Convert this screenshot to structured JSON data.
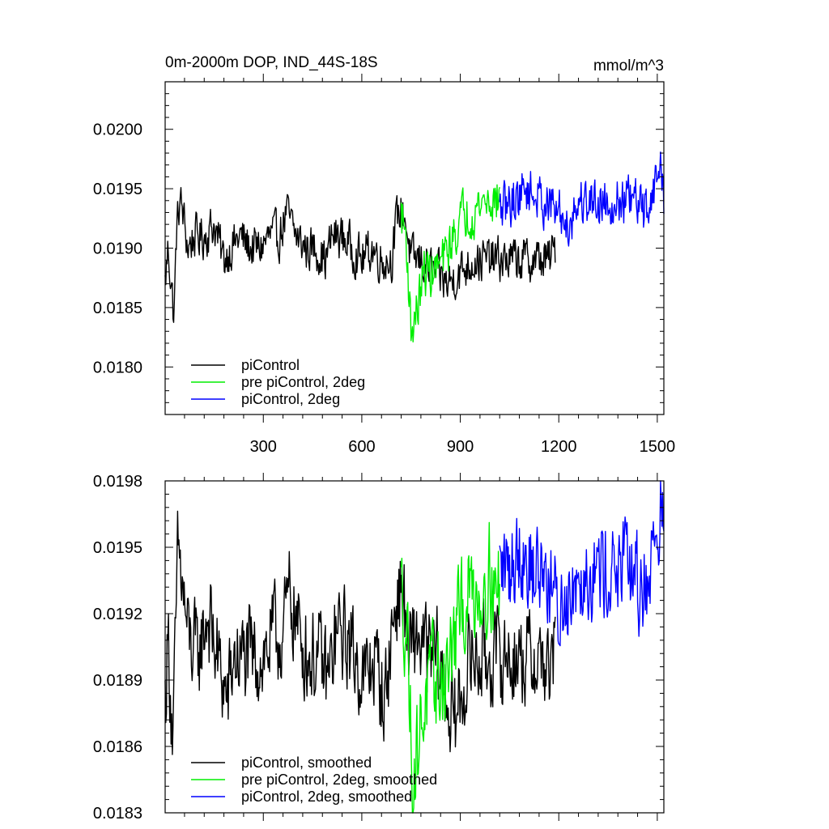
{
  "chart_data": [
    {
      "type": "line",
      "title": "0m-2000m DOP, IND_44S-18S",
      "units": "mmol/m^3",
      "xlabel": "",
      "ylabel": "",
      "xlim": [
        1,
        1520
      ],
      "ylim": [
        0.0176,
        0.0204
      ],
      "xticks": [
        300,
        600,
        900,
        1200,
        1500
      ],
      "xtick_labels": [
        "300",
        "600",
        "900",
        "1200",
        "1500"
      ],
      "yticks": [
        0.018,
        0.0185,
        0.019,
        0.0195,
        0.02
      ],
      "ytick_labels": [
        "0.0180",
        "0.0185",
        "0.0190",
        "0.0195",
        "0.0200"
      ],
      "grid": false,
      "legend": "bottom-left",
      "series": [
        {
          "name": "piControl",
          "color": "#000000",
          "x_range": [
            1,
            1190
          ],
          "anchors": [
            [
              1,
              0.0187
            ],
            [
              10,
              0.019
            ],
            [
              20,
              0.0187
            ],
            [
              28,
              0.0184
            ],
            [
              35,
              0.0191
            ],
            [
              45,
              0.0194
            ],
            [
              55,
              0.0193
            ],
            [
              70,
              0.019
            ],
            [
              90,
              0.0191
            ],
            [
              120,
              0.0191
            ],
            [
              150,
              0.0192
            ],
            [
              180,
              0.0189
            ],
            [
              200,
              0.019
            ],
            [
              230,
              0.0191
            ],
            [
              260,
              0.019
            ],
            [
              290,
              0.019
            ],
            [
              320,
              0.0191
            ],
            [
              350,
              0.0191
            ],
            [
              370,
              0.0193
            ],
            [
              400,
              0.0191
            ],
            [
              430,
              0.019
            ],
            [
              460,
              0.019
            ],
            [
              490,
              0.0189
            ],
            [
              510,
              0.0191
            ],
            [
              540,
              0.0191
            ],
            [
              570,
              0.019
            ],
            [
              600,
              0.0189
            ],
            [
              630,
              0.019
            ],
            [
              660,
              0.0189
            ],
            [
              690,
              0.0189
            ],
            [
              710,
              0.0193
            ],
            [
              730,
              0.0193
            ],
            [
              750,
              0.0189
            ],
            [
              780,
              0.0189
            ],
            [
              820,
              0.0188
            ],
            [
              860,
              0.0187
            ],
            [
              900,
              0.0188
            ],
            [
              940,
              0.0189
            ],
            [
              980,
              0.0189
            ],
            [
              1020,
              0.0189
            ],
            [
              1060,
              0.0189
            ],
            [
              1100,
              0.0189
            ],
            [
              1140,
              0.0189
            ],
            [
              1170,
              0.0189
            ],
            [
              1190,
              0.019
            ]
          ],
          "noise": 0.00026
        },
        {
          "name": "pre piControl, 2deg",
          "color": "#00ee00",
          "x_range": [
            720,
            1020
          ],
          "anchors": [
            [
              720,
              0.0193
            ],
            [
              735,
              0.0191
            ],
            [
              750,
              0.0183
            ],
            [
              760,
              0.0184
            ],
            [
              770,
              0.0185
            ],
            [
              790,
              0.0188
            ],
            [
              820,
              0.0188
            ],
            [
              850,
              0.0189
            ],
            [
              880,
              0.0191
            ],
            [
              910,
              0.0193
            ],
            [
              940,
              0.0193
            ],
            [
              970,
              0.0194
            ],
            [
              1000,
              0.0194
            ],
            [
              1020,
              0.0194
            ]
          ],
          "noise": 0.00028
        },
        {
          "name": "piControl, 2deg",
          "color": "#0000ff",
          "x_range": [
            1020,
            1520
          ],
          "anchors": [
            [
              1020,
              0.0193
            ],
            [
              1060,
              0.0194
            ],
            [
              1100,
              0.0195
            ],
            [
              1150,
              0.0194
            ],
            [
              1200,
              0.0193
            ],
            [
              1230,
              0.0192
            ],
            [
              1260,
              0.0194
            ],
            [
              1300,
              0.0194
            ],
            [
              1350,
              0.0194
            ],
            [
              1400,
              0.0194
            ],
            [
              1430,
              0.0194
            ],
            [
              1460,
              0.0193
            ],
            [
              1490,
              0.0195
            ],
            [
              1510,
              0.0197
            ],
            [
              1520,
              0.0194
            ]
          ],
          "noise": 0.00028
        }
      ]
    },
    {
      "type": "line",
      "title": "",
      "xlabel": "",
      "ylabel": "",
      "xlim": [
        1,
        1520
      ],
      "ylim": [
        0.0183,
        0.0198
      ],
      "xticks": [
        300,
        600,
        900,
        1200,
        1500
      ],
      "xtick_labels": [],
      "yticks": [
        0.0183,
        0.0186,
        0.0189,
        0.0192,
        0.0195,
        0.0198
      ],
      "ytick_labels": [
        "0.0183",
        "0.0186",
        "0.0189",
        "0.0192",
        "0.0195",
        "0.0198"
      ],
      "grid": false,
      "legend": "bottom-left",
      "series": [
        {
          "name": "piControl, smoothed",
          "color": "#000000",
          "x_range": [
            1,
            1190
          ],
          "anchors": [
            [
              1,
              0.0188
            ],
            [
              10,
              0.0191
            ],
            [
              25,
              0.0186
            ],
            [
              40,
              0.0195
            ],
            [
              55,
              0.0193
            ],
            [
              70,
              0.0191
            ],
            [
              100,
              0.019
            ],
            [
              130,
              0.0192
            ],
            [
              160,
              0.019
            ],
            [
              190,
              0.0188
            ],
            [
              210,
              0.019
            ],
            [
              240,
              0.019
            ],
            [
              270,
              0.019
            ],
            [
              300,
              0.019
            ],
            [
              330,
              0.0191
            ],
            [
              360,
              0.0191
            ],
            [
              380,
              0.0193
            ],
            [
              410,
              0.0191
            ],
            [
              440,
              0.019
            ],
            [
              470,
              0.019
            ],
            [
              500,
              0.0189
            ],
            [
              520,
              0.0191
            ],
            [
              550,
              0.0191
            ],
            [
              580,
              0.019
            ],
            [
              610,
              0.0189
            ],
            [
              640,
              0.019
            ],
            [
              670,
              0.0188
            ],
            [
              690,
              0.0191
            ],
            [
              710,
              0.0193
            ],
            [
              725,
              0.0193
            ],
            [
              745,
              0.019
            ],
            [
              770,
              0.0191
            ],
            [
              800,
              0.019
            ],
            [
              830,
              0.019
            ],
            [
              860,
              0.0188
            ],
            [
              880,
              0.0187
            ],
            [
              900,
              0.0188
            ],
            [
              930,
              0.019
            ],
            [
              960,
              0.019
            ],
            [
              1000,
              0.019
            ],
            [
              1040,
              0.019
            ],
            [
              1080,
              0.019
            ],
            [
              1120,
              0.019
            ],
            [
              1150,
              0.019
            ],
            [
              1175,
              0.0189
            ],
            [
              1190,
              0.0191
            ]
          ],
          "noise": 0.0003
        },
        {
          "name": "pre piControl, 2deg, smoothed",
          "color": "#00ee00",
          "x_range": [
            720,
            1020
          ],
          "anchors": [
            [
              720,
              0.0193
            ],
            [
              740,
              0.0191
            ],
            [
              755,
              0.0184
            ],
            [
              770,
              0.0186
            ],
            [
              790,
              0.0188
            ],
            [
              820,
              0.0189
            ],
            [
              850,
              0.0189
            ],
            [
              870,
              0.019
            ],
            [
              900,
              0.0192
            ],
            [
              930,
              0.0193
            ],
            [
              960,
              0.0193
            ],
            [
              990,
              0.0194
            ],
            [
              1005,
              0.0193
            ],
            [
              1020,
              0.0193
            ]
          ],
          "noise": 0.00032
        },
        {
          "name": "piControl, 2deg, smoothed",
          "color": "#0000ff",
          "x_range": [
            1020,
            1520
          ],
          "anchors": [
            [
              1020,
              0.0194
            ],
            [
              1050,
              0.0194
            ],
            [
              1080,
              0.0195
            ],
            [
              1120,
              0.0194
            ],
            [
              1160,
              0.0194
            ],
            [
              1200,
              0.0192
            ],
            [
              1230,
              0.0193
            ],
            [
              1260,
              0.0194
            ],
            [
              1300,
              0.0194
            ],
            [
              1340,
              0.0194
            ],
            [
              1380,
              0.0194
            ],
            [
              1420,
              0.0194
            ],
            [
              1450,
              0.0193
            ],
            [
              1480,
              0.0194
            ],
            [
              1500,
              0.0196
            ],
            [
              1510,
              0.0197
            ],
            [
              1520,
              0.0195
            ]
          ],
          "noise": 0.0003
        }
      ]
    }
  ]
}
